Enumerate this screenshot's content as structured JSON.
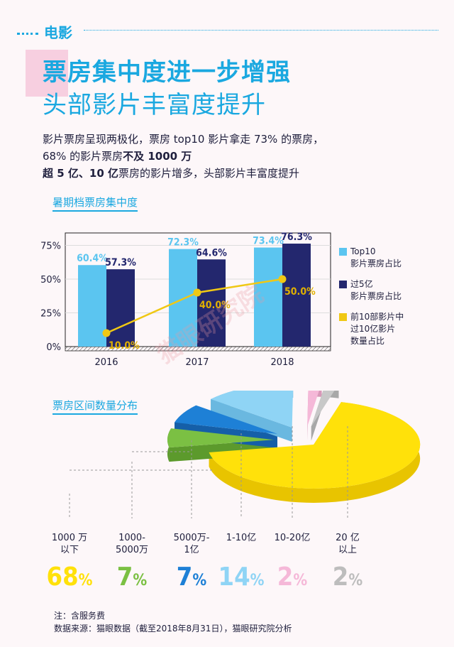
{
  "section": "电影",
  "title_line1": "票房集中度进一步增强",
  "title_line2": "头部影片丰富度提升",
  "summary": {
    "line1": "影片票房呈现两极化，票房 top10 影片拿走 73% 的票房，",
    "line2_a": "68% 的影片票房",
    "line2_b": "不及 1000 万",
    "line3_a": "超 5 亿、10 亿",
    "line3_b": "票房的影片增多，头部影片丰富度提升"
  },
  "watermark": "猫眼研究院",
  "chart_data": [
    {
      "type": "bar",
      "title": "暑期档票房集中度",
      "categories": [
        "2016",
        "2017",
        "2018"
      ],
      "ylim": [
        0,
        80
      ],
      "yticks": [
        "0%",
        "25%",
        "50%",
        "75%"
      ],
      "series": [
        {
          "name": "Top10 影片票房占比",
          "legend_lines": [
            "Top10",
            "影片票房占比"
          ],
          "values": [
            60.4,
            72.3,
            73.4
          ],
          "labels": [
            "60.4%",
            "72.3%",
            "73.4%"
          ],
          "color": "#5bc5f0",
          "label_color": "#5bc5f0"
        },
        {
          "name": "过5亿 影片票房占比",
          "legend_lines": [
            "过5亿",
            "影片票房占比"
          ],
          "values": [
            57.3,
            64.6,
            76.3
          ],
          "labels": [
            "57.3%",
            "64.6%",
            "76.3%"
          ],
          "color": "#23276e",
          "label_color": "#23276e"
        },
        {
          "name": "前10部影片中 过10亿影片 数量占比",
          "legend_lines": [
            "前10部影片中",
            "过10亿影片",
            "数量占比"
          ],
          "type": "line",
          "values": [
            10.0,
            40.0,
            50.0
          ],
          "labels": [
            "10.0%",
            "40.0%",
            "50.0%"
          ],
          "color": "#f0c814",
          "label_color": "#e0b000"
        }
      ]
    },
    {
      "type": "pie",
      "title": "票房区间数量分布",
      "slices": [
        {
          "label_lines": [
            "1000 万",
            "以下"
          ],
          "value": 68,
          "pct": "68",
          "color": "#ffe10a",
          "side": "#e8c400"
        },
        {
          "label_lines": [
            "1000-",
            "5000万"
          ],
          "value": 7,
          "pct": "7",
          "color": "#7bc043",
          "side": "#5c9a2c"
        },
        {
          "label_lines": [
            "5000万-",
            "1亿"
          ],
          "value": 7,
          "pct": "7",
          "color": "#1e80d6",
          "side": "#155fa8"
        },
        {
          "label_lines": [
            "1-10亿"
          ],
          "value": 14,
          "pct": "14",
          "color": "#8fd4f5",
          "side": "#6ab8e0"
        },
        {
          "label_lines": [
            "10-20亿"
          ],
          "value": 2,
          "pct": "2",
          "color": "#f5b8d8",
          "side": "#d898b8"
        },
        {
          "label_lines": [
            "20 亿",
            "以上"
          ],
          "value": 2,
          "pct": "2",
          "color": "#c8c8c8",
          "side": "#a8a8a8"
        }
      ]
    }
  ],
  "pct_colors": [
    "#ffe10a",
    "#7bc043",
    "#1e80d6",
    "#8fd4f5",
    "#f5b8d8",
    "#bdbdbd"
  ],
  "footnote1": "注：含服务费",
  "footnote2": "数据来源：猫眼数据（截至2018年8月31日），猫眼研究院分析"
}
